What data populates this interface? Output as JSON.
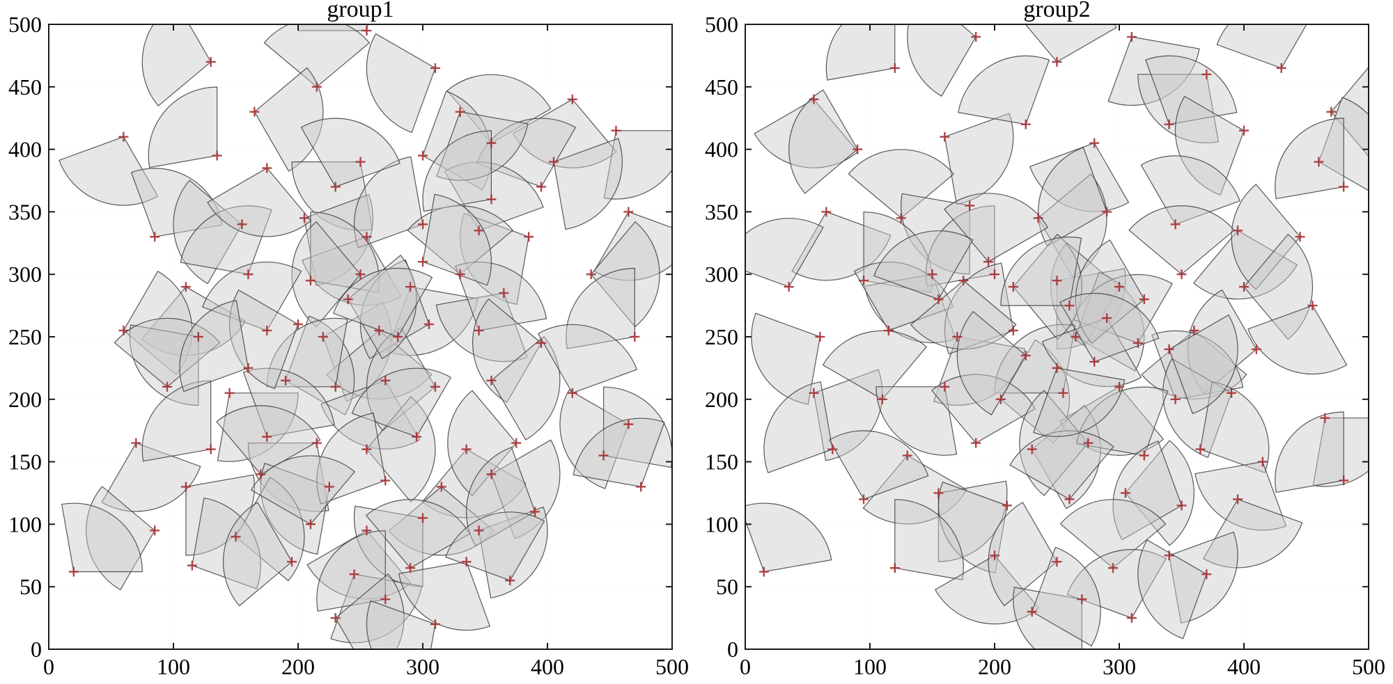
{
  "figure": {
    "colors": {
      "wedge_fill": "#c9c9c9",
      "wedge_stroke": "#3c3c3c",
      "marker": "#a83232",
      "axis": "#1a1a1a",
      "grid": "#c8c8c8",
      "background": "#ffffff"
    }
  },
  "chart_data": [
    {
      "type": "scatter",
      "title": "group1",
      "xlabel": "",
      "ylabel": "",
      "xlim": [
        0,
        500
      ],
      "ylim": [
        0,
        500
      ],
      "xticks": [
        0,
        100,
        200,
        300,
        400,
        500
      ],
      "yticks": [
        0,
        50,
        100,
        150,
        200,
        250,
        300,
        350,
        400,
        450,
        500
      ],
      "marker": "+",
      "wedge_radius": 55,
      "wedge_span_deg": 100,
      "points": [
        [
          60,
          410,
          200
        ],
        [
          130,
          470,
          120
        ],
        [
          255,
          495,
          80
        ],
        [
          215,
          450,
          40
        ],
        [
          165,
          430,
          300
        ],
        [
          310,
          465,
          150
        ],
        [
          420,
          440,
          210
        ],
        [
          355,
          405,
          30
        ],
        [
          455,
          415,
          260
        ],
        [
          135,
          395,
          90
        ],
        [
          250,
          390,
          180
        ],
        [
          300,
          395,
          330
        ],
        [
          395,
          370,
          60
        ],
        [
          465,
          350,
          240
        ],
        [
          85,
          330,
          10
        ],
        [
          155,
          340,
          140
        ],
        [
          205,
          345,
          280
        ],
        [
          255,
          330,
          200
        ],
        [
          300,
          340,
          100
        ],
        [
          345,
          335,
          20
        ],
        [
          385,
          330,
          160
        ],
        [
          435,
          300,
          310
        ],
        [
          110,
          290,
          230
        ],
        [
          160,
          300,
          70
        ],
        [
          210,
          295,
          350
        ],
        [
          250,
          300,
          130
        ],
        [
          290,
          290,
          250
        ],
        [
          330,
          300,
          40
        ],
        [
          365,
          285,
          190
        ],
        [
          470,
          250,
          90
        ],
        [
          60,
          255,
          320
        ],
        [
          120,
          250,
          170
        ],
        [
          175,
          255,
          60
        ],
        [
          220,
          250,
          290
        ],
        [
          265,
          255,
          220
        ],
        [
          305,
          260,
          110
        ],
        [
          345,
          255,
          10
        ],
        [
          395,
          245,
          140
        ],
        [
          95,
          210,
          40
        ],
        [
          145,
          205,
          260
        ],
        [
          190,
          215,
          330
        ],
        [
          230,
          210,
          80
        ],
        [
          270,
          215,
          200
        ],
        [
          310,
          210,
          120
        ],
        [
          355,
          215,
          300
        ],
        [
          420,
          205,
          20
        ],
        [
          465,
          180,
          150
        ],
        [
          70,
          165,
          240
        ],
        [
          130,
          160,
          90
        ],
        [
          175,
          170,
          10
        ],
        [
          215,
          165,
          180
        ],
        [
          255,
          160,
          310
        ],
        [
          295,
          170,
          60
        ],
        [
          335,
          160,
          230
        ],
        [
          375,
          165,
          130
        ],
        [
          445,
          155,
          350
        ],
        [
          110,
          130,
          270
        ],
        [
          170,
          140,
          30
        ],
        [
          225,
          130,
          160
        ],
        [
          270,
          135,
          100
        ],
        [
          315,
          130,
          220
        ],
        [
          355,
          140,
          290
        ],
        [
          475,
          130,
          70
        ],
        [
          85,
          95,
          140
        ],
        [
          150,
          90,
          320
        ],
        [
          210,
          100,
          50
        ],
        [
          255,
          95,
          210
        ],
        [
          300,
          105,
          170
        ],
        [
          345,
          95,
          280
        ],
        [
          390,
          110,
          110
        ],
        [
          20,
          62,
          0
        ],
        [
          115,
          67,
          340
        ],
        [
          195,
          70,
          120
        ],
        [
          245,
          60,
          250
        ],
        [
          290,
          65,
          30
        ],
        [
          335,
          70,
          190
        ],
        [
          270,
          40,
          90
        ],
        [
          230,
          25,
          300
        ],
        [
          310,
          20,
          160
        ],
        [
          370,
          55,
          60
        ],
        [
          405,
          390,
          280
        ],
        [
          330,
          430,
          250
        ],
        [
          230,
          370,
          20
        ],
        [
          175,
          385,
          210
        ],
        [
          355,
          360,
          90
        ],
        [
          240,
          280,
          300
        ],
        [
          280,
          250,
          60
        ],
        [
          200,
          260,
          150
        ],
        [
          160,
          225,
          100
        ],
        [
          300,
          310,
          340
        ]
      ]
    },
    {
      "type": "scatter",
      "title": "group2",
      "xlabel": "",
      "ylabel": "",
      "xlim": [
        0,
        500
      ],
      "ylim": [
        0,
        500
      ],
      "xticks": [
        0,
        100,
        200,
        300,
        400,
        500
      ],
      "yticks": [
        0,
        50,
        100,
        150,
        200,
        250,
        300,
        350,
        400,
        450,
        500
      ],
      "marker": "+",
      "wedge_radius": 55,
      "wedge_span_deg": 100,
      "points": [
        [
          55,
          440,
          210
        ],
        [
          120,
          465,
          90
        ],
        [
          185,
          490,
          140
        ],
        [
          250,
          470,
          30
        ],
        [
          310,
          490,
          250
        ],
        [
          370,
          460,
          180
        ],
        [
          430,
          465,
          60
        ],
        [
          470,
          430,
          310
        ],
        [
          90,
          400,
          120
        ],
        [
          160,
          410,
          280
        ],
        [
          225,
          420,
          70
        ],
        [
          280,
          405,
          200
        ],
        [
          340,
          420,
          10
        ],
        [
          400,
          415,
          150
        ],
        [
          460,
          390,
          330
        ],
        [
          480,
          370,
          90
        ],
        [
          65,
          350,
          240
        ],
        [
          125,
          345,
          40
        ],
        [
          180,
          355,
          170
        ],
        [
          235,
          345,
          300
        ],
        [
          290,
          350,
          110
        ],
        [
          345,
          340,
          20
        ],
        [
          395,
          335,
          230
        ],
        [
          445,
          330,
          130
        ],
        [
          35,
          290,
          60
        ],
        [
          95,
          295,
          350
        ],
        [
          150,
          300,
          190
        ],
        [
          200,
          300,
          90
        ],
        [
          250,
          295,
          270
        ],
        [
          300,
          290,
          140
        ],
        [
          350,
          300,
          40
        ],
        [
          400,
          290,
          310
        ],
        [
          455,
          275,
          200
        ],
        [
          60,
          250,
          160
        ],
        [
          115,
          255,
          20
        ],
        [
          170,
          250,
          250
        ],
        [
          215,
          255,
          100
        ],
        [
          265,
          250,
          330
        ],
        [
          315,
          245,
          60
        ],
        [
          360,
          255,
          220
        ],
        [
          410,
          240,
          120
        ],
        [
          55,
          205,
          280
        ],
        [
          110,
          200,
          50
        ],
        [
          160,
          210,
          180
        ],
        [
          205,
          200,
          320
        ],
        [
          255,
          205,
          80
        ],
        [
          300,
          210,
          210
        ],
        [
          345,
          200,
          10
        ],
        [
          390,
          205,
          150
        ],
        [
          465,
          185,
          260
        ],
        [
          70,
          160,
          100
        ],
        [
          130,
          155,
          230
        ],
        [
          185,
          165,
          30
        ],
        [
          230,
          160,
          300
        ],
        [
          275,
          165,
          130
        ],
        [
          320,
          155,
          70
        ],
        [
          365,
          160,
          340
        ],
        [
          415,
          150,
          190
        ],
        [
          480,
          135,
          90
        ],
        [
          95,
          120,
          20
        ],
        [
          155,
          125,
          270
        ],
        [
          210,
          115,
          160
        ],
        [
          260,
          120,
          50
        ],
        [
          305,
          125,
          310
        ],
        [
          350,
          115,
          110
        ],
        [
          395,
          120,
          240
        ],
        [
          15,
          62,
          10
        ],
        [
          120,
          65,
          350
        ],
        [
          200,
          75,
          210
        ],
        [
          250,
          70,
          120
        ],
        [
          295,
          65,
          40
        ],
        [
          340,
          75,
          280
        ],
        [
          270,
          40,
          170
        ],
        [
          310,
          25,
          60
        ],
        [
          230,
          30,
          330
        ],
        [
          370,
          60,
          150
        ],
        [
          175,
          295,
          220
        ],
        [
          195,
          310,
          30
        ],
        [
          215,
          290,
          310
        ],
        [
          260,
          275,
          80
        ],
        [
          290,
          265,
          200
        ],
        [
          320,
          280,
          120
        ],
        [
          155,
          280,
          60
        ],
        [
          340,
          240,
          290
        ],
        [
          280,
          230,
          20
        ],
        [
          250,
          225,
          250
        ],
        [
          225,
          235,
          140
        ]
      ]
    }
  ]
}
